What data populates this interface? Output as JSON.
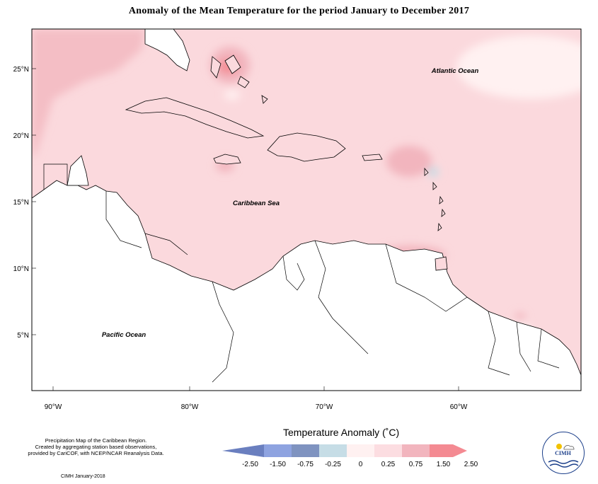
{
  "title": "Anomaly of the Mean Temperature for the period January to December 2017",
  "map": {
    "latitude_labels": [
      "25°N",
      "20°N",
      "15°N",
      "10°N",
      "5°N"
    ],
    "longitude_labels": [
      "90°W",
      "80°W",
      "70°W",
      "60°W"
    ],
    "ocean_labels": {
      "atlantic": "Atlantic Ocean",
      "caribbean": "Caribbean Sea",
      "pacific": "Pacific Ocean"
    },
    "dominant_anomaly_class": "0.25 to 0.75",
    "colors": {
      "land": "#ffffff",
      "sea_base": "#fbd9dd",
      "coast": "#000000"
    }
  },
  "legend": {
    "title": "Temperature Anomaly (˚C)",
    "ticks": [
      "-2.50",
      "-1.50",
      "-0.75",
      "-0.25",
      "0",
      "0.25",
      "0.75",
      "1.50",
      "2.50"
    ],
    "colors": [
      "#6a7fbf",
      "#8ea3e0",
      "#7f93c0",
      "#c6dde6",
      "#fff1f1",
      "#fcdde1",
      "#f2b5be",
      "#f48a92"
    ]
  },
  "footer": {
    "note_line1": "Precipitation Map of the Caribbean Region.",
    "note_line2": "Created by aggregating station based observations,",
    "note_line3": "provided by CariCOF, with NCEP/NCAR Reanalysis Data.",
    "credit": "CIMH January-2018",
    "logo_text": "CIMH"
  }
}
